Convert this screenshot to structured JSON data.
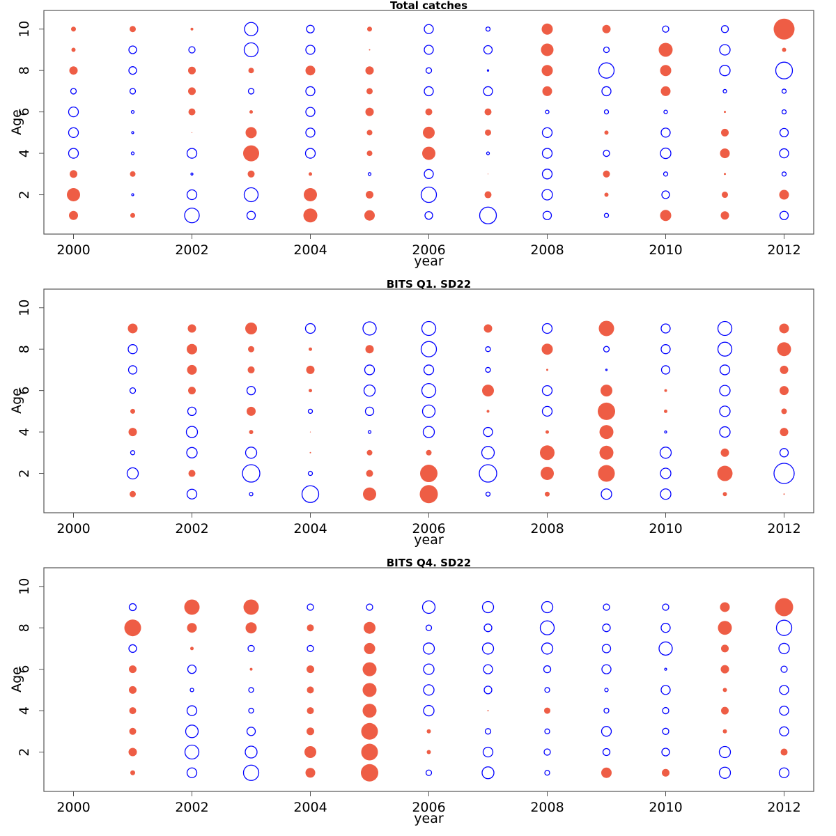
{
  "chart_data": [
    {
      "type": "scatter",
      "subtype": "bubble",
      "title": "Total catches",
      "xlabel": "year",
      "ylabel": "Age",
      "xlim": [
        1999.5,
        2012.5
      ],
      "ylim": [
        0.1,
        10.9
      ],
      "x_ticks": [
        2000,
        2002,
        2004,
        2006,
        2008,
        2010,
        2012
      ],
      "y_ticks": [
        2,
        4,
        6,
        8,
        10
      ],
      "sign_legend": {
        "positive": "filled red",
        "negative": "open blue"
      },
      "years": [
        2000,
        2001,
        2002,
        2003,
        2004,
        2005,
        2006,
        2007,
        2008,
        2009,
        2010,
        2011,
        2012
      ],
      "ages": [
        1,
        2,
        3,
        4,
        5,
        6,
        7,
        8,
        9,
        10
      ],
      "residuals_by_year": [
        [
          6.5,
          9.5,
          5.5,
          -7,
          -7,
          -7,
          -4,
          6,
          3,
          3.5
        ],
        [
          3.5,
          -1.5,
          4,
          -2,
          -1.5,
          -2,
          -4,
          -5.5,
          -5.5,
          4.5
        ],
        [
          -10.5,
          -7,
          -1.5,
          -7,
          0.5,
          5,
          5.5,
          5.5,
          -4.5,
          2
        ],
        [
          -6,
          -10,
          5,
          11.5,
          8,
          2.5,
          -4,
          4,
          -10,
          -9.5
        ],
        [
          10,
          9.5,
          2.5,
          -7,
          -6.5,
          -6.5,
          -6.5,
          7,
          -6.5,
          -5.5
        ],
        [
          7.5,
          5.5,
          -2,
          4,
          4,
          6,
          4.5,
          6,
          1,
          3.5
        ],
        [
          -5.5,
          -11,
          -6.5,
          9.5,
          8.5,
          5,
          -6.5,
          -4,
          -6.5,
          -6.5
        ],
        [
          -12,
          5,
          0.5,
          -2,
          4.5,
          5,
          -6.5,
          -1,
          -6,
          -3
        ],
        [
          -6,
          -7.5,
          -7,
          -7,
          -7,
          -2.5,
          7,
          8,
          9,
          8
        ],
        [
          -3,
          3,
          5,
          -4.5,
          3,
          -3,
          -6.5,
          -11,
          -4,
          6
        ],
        [
          8,
          -5.5,
          -3,
          -7.5,
          -6.5,
          -2.5,
          7,
          8,
          10,
          -4.5
        ],
        [
          6,
          4.5,
          1.5,
          7,
          5.5,
          1.5,
          -2.5,
          -7.5,
          -7.5,
          -5
        ],
        [
          -6,
          7,
          -3,
          -6.5,
          -6,
          -3,
          -3,
          -12,
          3,
          15
        ]
      ]
    },
    {
      "type": "scatter",
      "subtype": "bubble",
      "title": "BITS Q1. SD22",
      "xlabel": "year",
      "ylabel": "Age",
      "xlim": [
        1999.5,
        2012.5
      ],
      "ylim": [
        0.1,
        10.9
      ],
      "x_ticks": [
        2000,
        2002,
        2004,
        2006,
        2008,
        2010,
        2012
      ],
      "y_ticks": [
        2,
        4,
        6,
        8,
        10
      ],
      "years": [
        2001,
        2002,
        2003,
        2004,
        2005,
        2006,
        2007,
        2008,
        2009,
        2010,
        2011,
        2012
      ],
      "ages": [
        1,
        2,
        3,
        4,
        5,
        6,
        7,
        8,
        9
      ],
      "residuals_by_year": [
        [
          4.5,
          -8,
          -3,
          6,
          3.5,
          -4,
          -6,
          -6.5,
          7
        ],
        [
          -7,
          5,
          -7.5,
          -8,
          -6,
          5.5,
          7,
          7.5,
          6
        ],
        [
          -2.5,
          -12.5,
          -8,
          3,
          6.5,
          -6,
          5,
          4.5,
          8.5
        ],
        [
          -12,
          -3,
          1,
          0.5,
          -3,
          2.5,
          6,
          2.5,
          -7
        ],
        [
          9.5,
          5,
          4,
          -2,
          -6,
          -8,
          -7,
          6,
          -9.5
        ],
        [
          13,
          12.5,
          4,
          -8,
          -9,
          -10,
          -7,
          -11,
          -10
        ],
        [
          -3,
          -12.5,
          -9,
          -6.5,
          2,
          8.5,
          -3.5,
          -3.5,
          6
        ],
        [
          3.5,
          9.5,
          10.5,
          2.5,
          -7,
          -7,
          1.5,
          8,
          -7
        ],
        [
          -7.5,
          12,
          10,
          10,
          12.5,
          8.5,
          -1,
          -4,
          11
        ],
        [
          -7.5,
          -7.5,
          -8,
          -1.5,
          2.5,
          2,
          -6,
          -6.5,
          -6.5
        ],
        [
          3,
          11,
          6,
          -7.5,
          -7.5,
          -7.5,
          -7,
          -10,
          -10
        ],
        [
          1,
          -14.5,
          -6,
          6,
          4,
          6.5,
          6,
          10,
          7
        ]
      ]
    },
    {
      "type": "scatter",
      "subtype": "bubble",
      "title": "BITS Q4. SD22",
      "xlabel": "year",
      "ylabel": "Age",
      "xlim": [
        1999.5,
        2012.5
      ],
      "ylim": [
        0.1,
        10.9
      ],
      "x_ticks": [
        2000,
        2002,
        2004,
        2006,
        2008,
        2010,
        2012
      ],
      "y_ticks": [
        2,
        4,
        6,
        8,
        10
      ],
      "years": [
        2001,
        2002,
        2003,
        2004,
        2005,
        2006,
        2007,
        2008,
        2009,
        2010,
        2011,
        2012
      ],
      "ages": [
        1,
        2,
        3,
        4,
        5,
        6,
        7,
        8,
        9
      ],
      "residuals_by_year": [
        [
          3.5,
          6,
          5,
          5,
          5.5,
          5.5,
          -5.5,
          12,
          -5
        ],
        [
          -7,
          -10,
          -9,
          -7,
          -2.5,
          -6,
          2.5,
          7,
          11
        ],
        [
          -11,
          -8.5,
          -6,
          -3.5,
          -3.5,
          2,
          -4.5,
          8,
          11
        ],
        [
          7,
          8.5,
          5.5,
          5,
          5,
          5.5,
          -4.5,
          5,
          -4.5
        ],
        [
          12.5,
          12,
          12,
          10,
          10,
          10,
          8,
          8.5,
          -4.5
        ],
        [
          -4,
          3,
          3,
          -7.5,
          -7.5,
          -7.5,
          -8,
          -4,
          -9
        ],
        [
          -8.5,
          -7,
          -4,
          1,
          -5.5,
          -6.5,
          -8,
          -5.5,
          -8
        ],
        [
          -3.5,
          -4.5,
          -3.5,
          4.5,
          -3.5,
          -5,
          -8,
          -10,
          -8
        ],
        [
          7.5,
          -5,
          -7,
          -3.5,
          -2.5,
          -6.5,
          -6,
          -5.5,
          -4.5
        ],
        [
          5.5,
          -5.5,
          -4.5,
          -4.5,
          -6.5,
          -1.5,
          -9.5,
          -6.5,
          -4.5
        ],
        [
          -8,
          -8,
          3,
          5.5,
          3,
          6,
          5.5,
          10,
          7
        ],
        [
          -7,
          5,
          -6.5,
          -6.5,
          -6.5,
          -4.5,
          -7.5,
          -11,
          13
        ]
      ]
    }
  ],
  "colors": {
    "positive": "#ee5d45",
    "negative": "#0000ff",
    "frame": "#555555"
  }
}
